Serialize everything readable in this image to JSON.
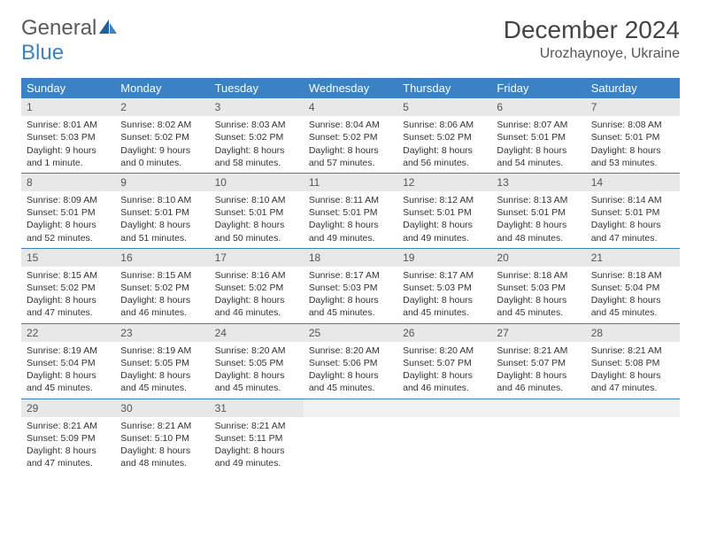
{
  "logo": {
    "text_general": "General",
    "text_blue": "Blue",
    "accent_color": "#3b82c4"
  },
  "title": "December 2024",
  "location": "Urozhaynoye, Ukraine",
  "colors": {
    "header_bg": "#3b82c4",
    "header_text": "#ffffff",
    "daynum_bg": "#e8e8e8",
    "row_border": "#3b82c4",
    "text": "#333333"
  },
  "day_headers": [
    "Sunday",
    "Monday",
    "Tuesday",
    "Wednesday",
    "Thursday",
    "Friday",
    "Saturday"
  ],
  "weeks": [
    [
      {
        "n": "1",
        "sr": "8:01 AM",
        "ss": "5:03 PM",
        "dl": "9 hours and 1 minute."
      },
      {
        "n": "2",
        "sr": "8:02 AM",
        "ss": "5:02 PM",
        "dl": "9 hours and 0 minutes."
      },
      {
        "n": "3",
        "sr": "8:03 AM",
        "ss": "5:02 PM",
        "dl": "8 hours and 58 minutes."
      },
      {
        "n": "4",
        "sr": "8:04 AM",
        "ss": "5:02 PM",
        "dl": "8 hours and 57 minutes."
      },
      {
        "n": "5",
        "sr": "8:06 AM",
        "ss": "5:02 PM",
        "dl": "8 hours and 56 minutes."
      },
      {
        "n": "6",
        "sr": "8:07 AM",
        "ss": "5:01 PM",
        "dl": "8 hours and 54 minutes."
      },
      {
        "n": "7",
        "sr": "8:08 AM",
        "ss": "5:01 PM",
        "dl": "8 hours and 53 minutes."
      }
    ],
    [
      {
        "n": "8",
        "sr": "8:09 AM",
        "ss": "5:01 PM",
        "dl": "8 hours and 52 minutes."
      },
      {
        "n": "9",
        "sr": "8:10 AM",
        "ss": "5:01 PM",
        "dl": "8 hours and 51 minutes."
      },
      {
        "n": "10",
        "sr": "8:10 AM",
        "ss": "5:01 PM",
        "dl": "8 hours and 50 minutes."
      },
      {
        "n": "11",
        "sr": "8:11 AM",
        "ss": "5:01 PM",
        "dl": "8 hours and 49 minutes."
      },
      {
        "n": "12",
        "sr": "8:12 AM",
        "ss": "5:01 PM",
        "dl": "8 hours and 49 minutes."
      },
      {
        "n": "13",
        "sr": "8:13 AM",
        "ss": "5:01 PM",
        "dl": "8 hours and 48 minutes."
      },
      {
        "n": "14",
        "sr": "8:14 AM",
        "ss": "5:01 PM",
        "dl": "8 hours and 47 minutes."
      }
    ],
    [
      {
        "n": "15",
        "sr": "8:15 AM",
        "ss": "5:02 PM",
        "dl": "8 hours and 47 minutes."
      },
      {
        "n": "16",
        "sr": "8:15 AM",
        "ss": "5:02 PM",
        "dl": "8 hours and 46 minutes."
      },
      {
        "n": "17",
        "sr": "8:16 AM",
        "ss": "5:02 PM",
        "dl": "8 hours and 46 minutes."
      },
      {
        "n": "18",
        "sr": "8:17 AM",
        "ss": "5:03 PM",
        "dl": "8 hours and 45 minutes."
      },
      {
        "n": "19",
        "sr": "8:17 AM",
        "ss": "5:03 PM",
        "dl": "8 hours and 45 minutes."
      },
      {
        "n": "20",
        "sr": "8:18 AM",
        "ss": "5:03 PM",
        "dl": "8 hours and 45 minutes."
      },
      {
        "n": "21",
        "sr": "8:18 AM",
        "ss": "5:04 PM",
        "dl": "8 hours and 45 minutes."
      }
    ],
    [
      {
        "n": "22",
        "sr": "8:19 AM",
        "ss": "5:04 PM",
        "dl": "8 hours and 45 minutes."
      },
      {
        "n": "23",
        "sr": "8:19 AM",
        "ss": "5:05 PM",
        "dl": "8 hours and 45 minutes."
      },
      {
        "n": "24",
        "sr": "8:20 AM",
        "ss": "5:05 PM",
        "dl": "8 hours and 45 minutes."
      },
      {
        "n": "25",
        "sr": "8:20 AM",
        "ss": "5:06 PM",
        "dl": "8 hours and 45 minutes."
      },
      {
        "n": "26",
        "sr": "8:20 AM",
        "ss": "5:07 PM",
        "dl": "8 hours and 46 minutes."
      },
      {
        "n": "27",
        "sr": "8:21 AM",
        "ss": "5:07 PM",
        "dl": "8 hours and 46 minutes."
      },
      {
        "n": "28",
        "sr": "8:21 AM",
        "ss": "5:08 PM",
        "dl": "8 hours and 47 minutes."
      }
    ],
    [
      {
        "n": "29",
        "sr": "8:21 AM",
        "ss": "5:09 PM",
        "dl": "8 hours and 47 minutes."
      },
      {
        "n": "30",
        "sr": "8:21 AM",
        "ss": "5:10 PM",
        "dl": "8 hours and 48 minutes."
      },
      {
        "n": "31",
        "sr": "8:21 AM",
        "ss": "5:11 PM",
        "dl": "8 hours and 49 minutes."
      },
      null,
      null,
      null,
      null
    ]
  ],
  "labels": {
    "sunrise": "Sunrise:",
    "sunset": "Sunset:",
    "daylight": "Daylight:"
  }
}
